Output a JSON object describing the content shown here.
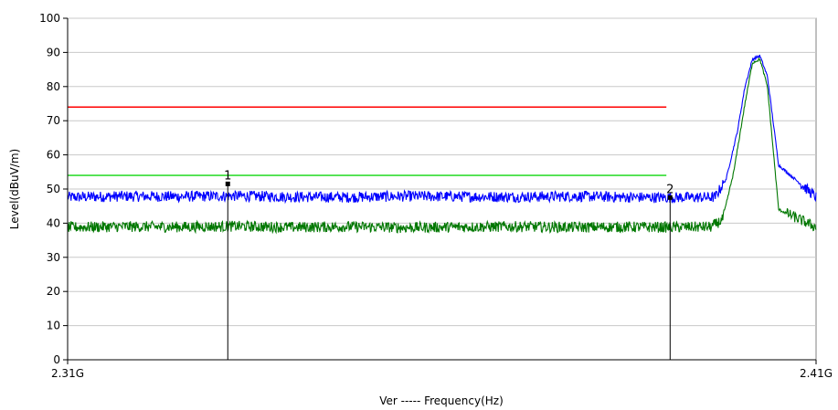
{
  "chart_data": {
    "type": "line",
    "title": "",
    "xlabel": "Ver ----- Frequency(Hz)",
    "ylabel": "Level(dBuV/m)",
    "xlim": [
      2.31,
      2.41
    ],
    "ylim": [
      0,
      100
    ],
    "x_unit": "GHz",
    "x_tick_labels": [
      "2.31G",
      "2.41G"
    ],
    "y_ticks": [
      0,
      10,
      20,
      30,
      40,
      50,
      60,
      70,
      80,
      90,
      100
    ],
    "grid": true,
    "limit_lines": [
      {
        "color": "#ff0000",
        "y": 74,
        "x": [
          2.31,
          2.39
        ]
      },
      {
        "color": "#33dd33",
        "y": 54,
        "x": [
          2.31,
          2.39
        ]
      }
    ],
    "series": [
      {
        "color": "#0000ff",
        "noise_floor": 47.5,
        "x": [
          2.31,
          2.3175,
          2.325,
          2.3325,
          2.34,
          2.3475,
          2.355,
          2.3625,
          2.37,
          2.3775,
          2.385,
          2.39,
          2.3965,
          2.398,
          2.3995,
          2.4005,
          2.4015,
          2.4025,
          2.4035,
          2.405,
          2.41
        ],
        "values": [
          47.6,
          47.9,
          47.8,
          48.0,
          47.7,
          47.6,
          47.9,
          47.8,
          47.7,
          47.9,
          47.6,
          47.5,
          47.6,
          53,
          67,
          80,
          88,
          89,
          83,
          57,
          47.6
        ]
      },
      {
        "color": "#007700",
        "noise_floor": 38.8,
        "x": [
          2.31,
          2.3175,
          2.325,
          2.3325,
          2.34,
          2.3475,
          2.355,
          2.3625,
          2.37,
          2.3775,
          2.385,
          2.39,
          2.396,
          2.3975,
          2.399,
          2.4005,
          2.4015,
          2.4025,
          2.4035,
          2.405,
          2.41
        ],
        "values": [
          38.8,
          39.0,
          38.9,
          39.1,
          38.8,
          39.0,
          38.7,
          38.9,
          39.0,
          38.8,
          38.9,
          38.8,
          38.9,
          41,
          55,
          75,
          87,
          88,
          80,
          44,
          38.8
        ]
      }
    ],
    "markers": [
      {
        "label": "1",
        "x": 2.3314,
        "y": 51.5
      },
      {
        "label": "2",
        "x": 2.3905,
        "y": 47.5
      }
    ]
  }
}
